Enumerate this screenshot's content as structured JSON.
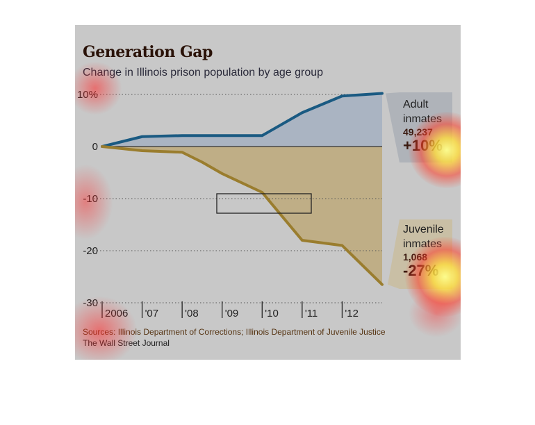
{
  "header": {
    "title": "Generation Gap",
    "subtitle": "Change in Illinois prison population by age group"
  },
  "annotations": {
    "adult": {
      "label_line1": "Adult",
      "label_line2": "inmates",
      "value": "49,237",
      "change": "+10%"
    },
    "juvenile": {
      "label_line1": "Juvenile",
      "label_line2": "inmates",
      "value": "1,068",
      "change": "-27%"
    }
  },
  "footer": {
    "sources": "Sources: Illinois Department of Corrections; Illinois Department of Juvenile Justice",
    "credit": "The Wall Street Journal"
  },
  "colors": {
    "adult_line": "#1a5a82",
    "adult_fill": "#aab4c2",
    "juvenile_line": "#9a7d2e",
    "juvenile_fill": "#bfae86",
    "gridline": "#555555",
    "axis_text": "#222222"
  },
  "chart_data": {
    "type": "area",
    "title": "Generation Gap",
    "subtitle": "Change in Illinois prison population by age group",
    "x": [
      2006.0,
      2007.0,
      2008.0,
      2008.5,
      2009.0,
      2010.0,
      2011.0,
      2012.0,
      2013.0
    ],
    "x_tick_values": [
      2006,
      2007,
      2008,
      2009,
      2010,
      2011,
      2012
    ],
    "x_tick_labels": [
      "2006",
      "'07",
      "'08",
      "'09",
      "'10",
      "'11",
      "'12"
    ],
    "y_tick_values": [
      10,
      0,
      -10,
      -20,
      -30
    ],
    "y_tick_labels": [
      "10%",
      "0",
      "-10",
      "-20",
      "-30"
    ],
    "ylim": [
      -30,
      10
    ],
    "xlim": [
      2006,
      2013
    ],
    "grid": true,
    "series": [
      {
        "name": "Adult inmates",
        "values": [
          0,
          1.9,
          2.1,
          2.1,
          2.1,
          2.1,
          6.5,
          9.7,
          10.2
        ]
      },
      {
        "name": "Juvenile inmates",
        "values": [
          0,
          -0.8,
          -1.1,
          -3.0,
          -5.2,
          -8.8,
          -18.0,
          -19.0,
          -26.5
        ]
      }
    ]
  }
}
